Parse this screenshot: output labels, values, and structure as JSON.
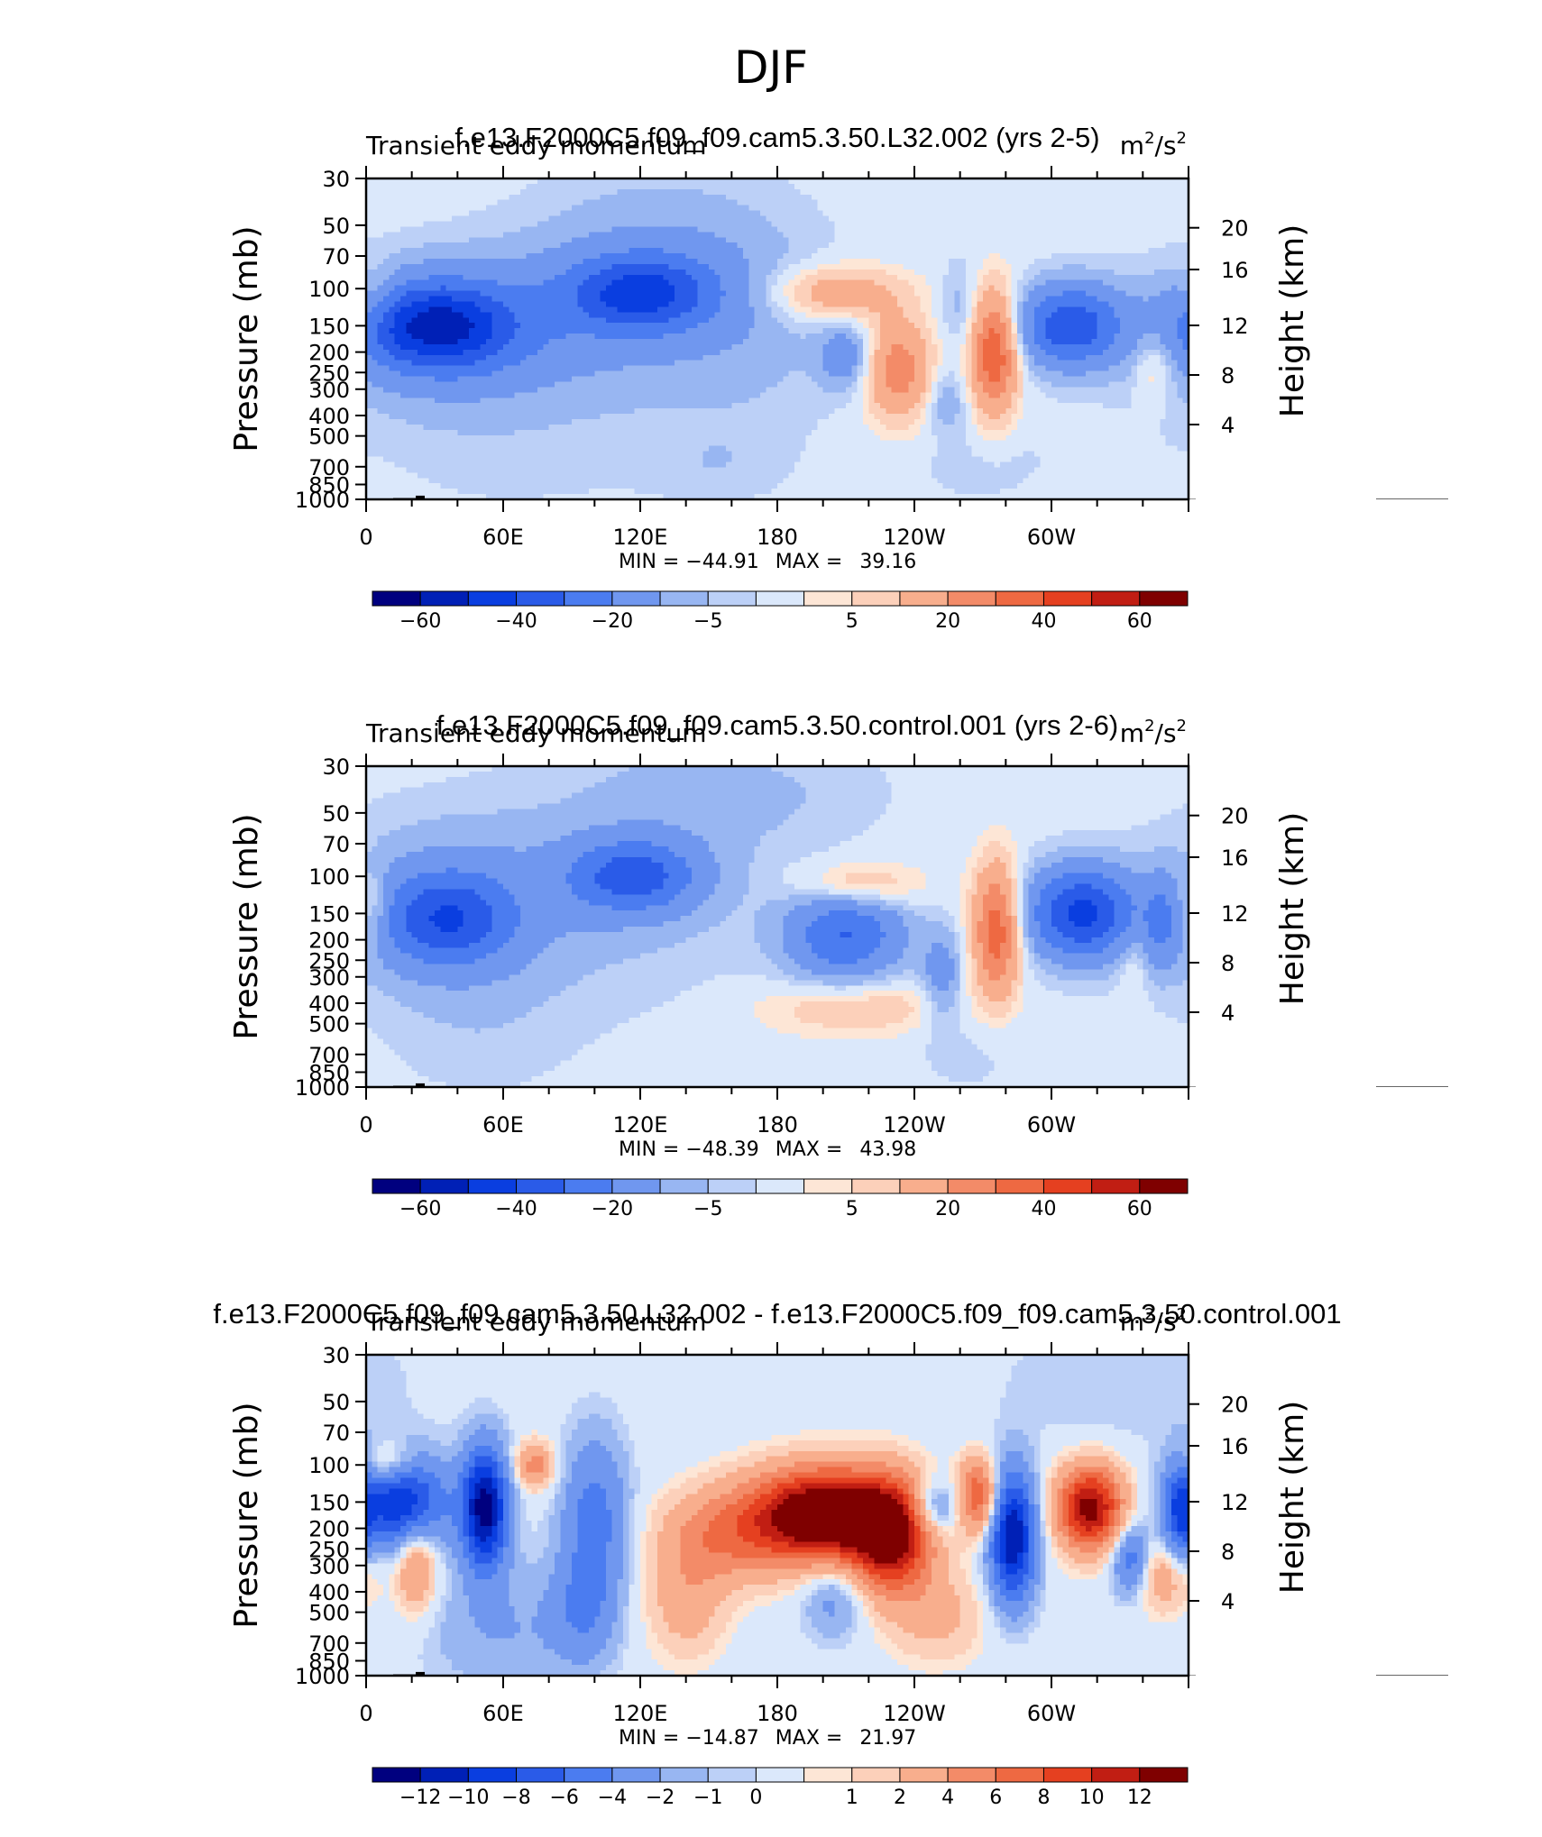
{
  "suptitle": "DJF",
  "colormaps": {
    "full": [
      "#00007f",
      "#0020b6",
      "#0a3ee0",
      "#2a5be8",
      "#4b7cf0",
      "#7097ef",
      "#98b6f2",
      "#bcd0f7",
      "#dbe8fb",
      "#fde6d6",
      "#fcd0ba",
      "#f8ae8d",
      "#f38b68",
      "#ee6942",
      "#e54020",
      "#c11e13",
      "#7f0000"
    ],
    "diff": [
      "#00007f",
      "#0020b6",
      "#0a3ee0",
      "#2a5be8",
      "#4b7cf0",
      "#7097ef",
      "#98b6f2",
      "#bcd0f7",
      "#dbe8fb",
      "#fde6d6",
      "#fcd0ba",
      "#f8ae8d",
      "#f38b68",
      "#ee6942",
      "#e54020",
      "#c11e13",
      "#7f0000"
    ],
    "topography": "#000000"
  },
  "chart_data": [
    {
      "type": "heatmap",
      "title": "f.e13.F2000C5.f09_f09.cam5.3.50.L32.002 (yrs 2-5)",
      "left_label": "Transient eddy momentum",
      "units": {
        "base": "m",
        "exp1": "2",
        "mid": "/s",
        "exp2": "2"
      },
      "ylabel": "Pressure (mb)",
      "ylabel_right": "Height (km)",
      "x_tick_labels": [
        "0",
        "60E",
        "120E",
        "180",
        "120W",
        "60W"
      ],
      "y_tick_labels": [
        "30",
        "50",
        "70",
        "100",
        "150",
        "200",
        "250",
        "300",
        "400",
        "500",
        "700",
        "850",
        "1000"
      ],
      "y_right_tick_labels": [
        "20",
        "16",
        "12",
        "8",
        "4"
      ],
      "xlim": [
        0,
        360
      ],
      "ylim_mb": [
        1000,
        30
      ],
      "stats": {
        "min_label": "MIN =",
        "min": "-44.91",
        "max_label": "MAX =",
        "max": "39.16"
      },
      "colorbar_levels": [
        -70,
        -60,
        -50,
        -40,
        -30,
        -20,
        -10,
        -5,
        -2,
        2,
        5,
        10,
        20,
        30,
        40,
        50,
        60
      ],
      "colorbar_labels": [
        "-60",
        "-40",
        "-20",
        "-5",
        "5",
        "20",
        "40",
        "60"
      ],
      "features": [
        {
          "lon": 30,
          "mb": 150,
          "amp": -38,
          "dlon": 22,
          "dlev": 0.09
        },
        {
          "lon": 40,
          "mb": 160,
          "amp": -20,
          "dlon": 40,
          "dlev": 0.15
        },
        {
          "lon": 5,
          "mb": 110,
          "amp": 8,
          "dlon": 6,
          "dlev": 0.07
        },
        {
          "lon": 120,
          "mb": 105,
          "amp": -34,
          "dlon": 22,
          "dlev": 0.08
        },
        {
          "lon": 125,
          "mb": 95,
          "amp": -12,
          "dlon": 40,
          "dlev": 0.22
        },
        {
          "lon": 170,
          "mb": 160,
          "amp": -4,
          "dlon": 30,
          "dlev": 0.25
        },
        {
          "lon": 205,
          "mb": 105,
          "amp": 18,
          "dlon": 20,
          "dlev": 0.06
        },
        {
          "lon": 210,
          "mb": 210,
          "amp": -15,
          "dlon": 8,
          "dlev": 0.07
        },
        {
          "lon": 233,
          "mb": 240,
          "amp": 26,
          "dlon": 10,
          "dlev": 0.11
        },
        {
          "lon": 260,
          "mb": 120,
          "amp": -7,
          "dlon": 6,
          "dlev": 0.1
        },
        {
          "lon": 254,
          "mb": 340,
          "amp": -9,
          "dlon": 6,
          "dlev": 0.07
        },
        {
          "lon": 275,
          "mb": 200,
          "amp": 40,
          "dlon": 7,
          "dlev": 0.13
        },
        {
          "lon": 308,
          "mb": 150,
          "amp": -37,
          "dlon": 16,
          "dlev": 0.09
        },
        {
          "lon": 345,
          "mb": 230,
          "amp": 10,
          "dlon": 6,
          "dlev": 0.08
        },
        {
          "lon": 60,
          "mb": 600,
          "amp": -3,
          "dlon": 60,
          "dlev": 0.15
        },
        {
          "lon": 155,
          "mb": 700,
          "amp": -3,
          "dlon": 20,
          "dlev": 0.08
        },
        {
          "lon": 270,
          "mb": 700,
          "amp": -3,
          "dlon": 25,
          "dlev": 0.1
        },
        {
          "lon": 340,
          "mb": 900,
          "amp": 2.6,
          "dlon": 25,
          "dlev": 0.06
        }
      ]
    },
    {
      "type": "heatmap",
      "title": "f.e13.F2000C5.f09_f09.cam5.3.50.control.001 (yrs 2-6)",
      "left_label": "Transient eddy momentum",
      "units": {
        "base": "m",
        "exp1": "2",
        "mid": "/s",
        "exp2": "2"
      },
      "ylabel": "Pressure (mb)",
      "ylabel_right": "Height (km)",
      "x_tick_labels": [
        "0",
        "60E",
        "120E",
        "180",
        "120W",
        "60W"
      ],
      "y_tick_labels": [
        "30",
        "50",
        "70",
        "100",
        "150",
        "200",
        "250",
        "300",
        "400",
        "500",
        "700",
        "850",
        "1000"
      ],
      "y_right_tick_labels": [
        "20",
        "16",
        "12",
        "8",
        "4"
      ],
      "xlim": [
        0,
        360
      ],
      "ylim_mb": [
        1000,
        30
      ],
      "stats": {
        "min_label": "MIN =",
        "min": "-48.39",
        "max_label": "MAX =",
        "max": "43.98"
      },
      "colorbar_levels": [
        -70,
        -60,
        -50,
        -40,
        -30,
        -20,
        -10,
        -5,
        -2,
        2,
        5,
        10,
        20,
        30,
        40,
        50,
        60
      ],
      "colorbar_labels": [
        "-60",
        "-40",
        "-20",
        "-5",
        "5",
        "20",
        "40",
        "60"
      ],
      "features": [
        {
          "lon": 35,
          "mb": 160,
          "amp": -30,
          "dlon": 20,
          "dlev": 0.1
        },
        {
          "lon": 40,
          "mb": 140,
          "amp": -12,
          "dlon": 40,
          "dlev": 0.2
        },
        {
          "lon": 3,
          "mb": 140,
          "amp": 12,
          "dlon": 5,
          "dlev": 0.08
        },
        {
          "lon": 117,
          "mb": 100,
          "amp": -30,
          "dlon": 20,
          "dlev": 0.08
        },
        {
          "lon": 125,
          "mb": 80,
          "amp": -6,
          "dlon": 40,
          "dlev": 0.3
        },
        {
          "lon": 210,
          "mb": 190,
          "amp": -30,
          "dlon": 18,
          "dlev": 0.1
        },
        {
          "lon": 215,
          "mb": 110,
          "amp": 14,
          "dlon": 18,
          "dlev": 0.05
        },
        {
          "lon": 215,
          "mb": 420,
          "amp": 10,
          "dlon": 30,
          "dlev": 0.06
        },
        {
          "lon": 252,
          "mb": 300,
          "amp": -14,
          "dlon": 6,
          "dlev": 0.1
        },
        {
          "lon": 276,
          "mb": 180,
          "amp": 38,
          "dlon": 7,
          "dlev": 0.14
        },
        {
          "lon": 313,
          "mb": 150,
          "amp": -42,
          "dlon": 17,
          "dlev": 0.1
        },
        {
          "lon": 348,
          "mb": 170,
          "amp": -14,
          "dlon": 5,
          "dlev": 0.1
        },
        {
          "lon": 335,
          "mb": 250,
          "amp": 6,
          "dlon": 5,
          "dlev": 0.08
        },
        {
          "lon": 180,
          "mb": 40,
          "amp": -4,
          "dlon": 40,
          "dlev": 0.12
        },
        {
          "lon": 50,
          "mb": 600,
          "amp": -3,
          "dlon": 30,
          "dlev": 0.15
        },
        {
          "lon": 265,
          "mb": 650,
          "amp": -3,
          "dlon": 20,
          "dlev": 0.12
        }
      ]
    },
    {
      "type": "heatmap",
      "title": "f.e13.F2000C5.f09_f09.cam5.3.50.L32.002 - f.e13.F2000C5.f09_f09.cam5.3.50.control.001",
      "left_label": "Transient eddy momentum",
      "units": {
        "base": "m",
        "exp1": "2",
        "mid": "/s",
        "exp2": "2"
      },
      "ylabel": "Pressure (mb)",
      "ylabel_right": "Height (km)",
      "x_tick_labels": [
        "0",
        "60E",
        "120E",
        "180",
        "120W",
        "60W"
      ],
      "y_tick_labels": [
        "30",
        "50",
        "70",
        "100",
        "150",
        "200",
        "250",
        "300",
        "400",
        "500",
        "700",
        "850",
        "1000"
      ],
      "y_right_tick_labels": [
        "20",
        "16",
        "12",
        "8",
        "4"
      ],
      "xlim": [
        0,
        360
      ],
      "ylim_mb": [
        1000,
        30
      ],
      "stats": {
        "min_label": "MIN =",
        "min": "-14.87",
        "max_label": "MAX =",
        "max": "21.97"
      },
      "colorbar_levels": [
        -14,
        -12,
        -10,
        -8,
        -6,
        -4,
        -2,
        -1,
        -0.5,
        0.5,
        1,
        2,
        4,
        6,
        8,
        10,
        12
      ],
      "colorbar_labels": [
        "-12",
        "-10",
        "-8",
        "-6",
        "-4",
        "-2",
        "-1",
        "0",
        "1",
        "2",
        "4",
        "6",
        "8",
        "10",
        "12"
      ],
      "features": [
        {
          "lon": 15,
          "mb": 150,
          "amp": -10,
          "dlon": 14,
          "dlev": 0.1
        },
        {
          "lon": 52,
          "mb": 160,
          "amp": -13,
          "dlon": 7,
          "dlev": 0.13
        },
        {
          "lon": 10,
          "mb": 100,
          "amp": 4,
          "dlon": 8,
          "dlev": 0.05
        },
        {
          "lon": 22,
          "mb": 300,
          "amp": 5,
          "dlon": 6,
          "dlev": 0.1
        },
        {
          "lon": 74,
          "mb": 100,
          "amp": 5,
          "dlon": 6,
          "dlev": 0.05
        },
        {
          "lon": 100,
          "mb": 180,
          "amp": -5,
          "dlon": 10,
          "dlev": 0.18
        },
        {
          "lon": 155,
          "mb": 220,
          "amp": 5,
          "dlon": 18,
          "dlev": 0.1
        },
        {
          "lon": 200,
          "mb": 175,
          "amp": 17,
          "dlon": 22,
          "dlev": 0.1
        },
        {
          "lon": 230,
          "mb": 220,
          "amp": 12,
          "dlon": 12,
          "dlev": 0.12
        },
        {
          "lon": 248,
          "mb": 160,
          "amp": -5,
          "dlon": 8,
          "dlev": 0.06
        },
        {
          "lon": 268,
          "mb": 140,
          "amp": 8,
          "dlon": 6,
          "dlev": 0.08
        },
        {
          "lon": 283,
          "mb": 220,
          "amp": -12,
          "dlon": 7,
          "dlev": 0.14
        },
        {
          "lon": 317,
          "mb": 160,
          "amp": 13,
          "dlon": 10,
          "dlev": 0.09
        },
        {
          "lon": 335,
          "mb": 280,
          "amp": -6,
          "dlon": 6,
          "dlev": 0.08
        },
        {
          "lon": 350,
          "mb": 330,
          "amp": 4,
          "dlon": 10,
          "dlev": 0.08
        },
        {
          "lon": 356,
          "mb": 180,
          "amp": -6,
          "dlon": 5,
          "dlev": 0.12
        },
        {
          "lon": 95,
          "mb": 500,
          "amp": -3,
          "dlon": 10,
          "dlev": 0.12
        },
        {
          "lon": 205,
          "mb": 400,
          "amp": -3,
          "dlon": 10,
          "dlev": 0.1
        },
        {
          "lon": 140,
          "mb": 450,
          "amp": 3,
          "dlon": 12,
          "dlev": 0.12
        },
        {
          "lon": 250,
          "mb": 520,
          "amp": 2.5,
          "dlon": 15,
          "dlev": 0.1
        },
        {
          "lon": 60,
          "mb": 600,
          "amp": -2,
          "dlon": 25,
          "dlev": 0.15
        },
        {
          "lon": 330,
          "mb": 40,
          "amp": -1,
          "dlon": 40,
          "dlev": 0.15
        }
      ]
    }
  ]
}
